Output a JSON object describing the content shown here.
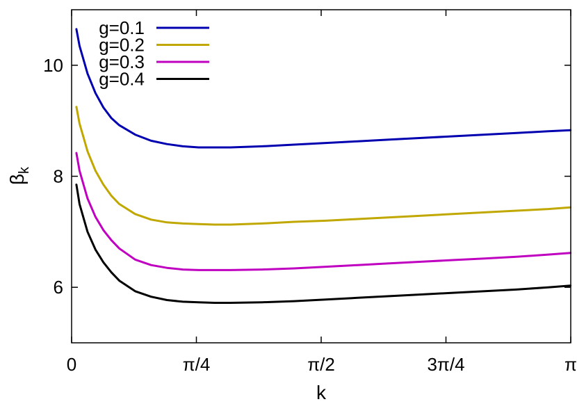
{
  "chart_data": {
    "type": "line",
    "title": "",
    "xlabel": "k",
    "ylabel_main": "β",
    "ylabel_sub": "k",
    "xlim": [
      0,
      3.14159
    ],
    "ylim": [
      5.0,
      11.0
    ],
    "x_ticks": [
      {
        "value": 0,
        "label": "0"
      },
      {
        "value": 0.785398,
        "label": "π/4"
      },
      {
        "value": 1.570796,
        "label": "π/2"
      },
      {
        "value": 2.356194,
        "label": "3π/4"
      },
      {
        "value": 3.141593,
        "label": "π"
      }
    ],
    "y_ticks": [
      {
        "value": 6,
        "label": "6"
      },
      {
        "value": 8,
        "label": "8"
      },
      {
        "value": 10,
        "label": "10"
      }
    ],
    "grid": false,
    "legend_position": "top-left",
    "series": [
      {
        "name": "g=0.1",
        "color": "#0000b0",
        "x": [
          0.03,
          0.05,
          0.08,
          0.1,
          0.15,
          0.2,
          0.25,
          0.3,
          0.4,
          0.5,
          0.6,
          0.7,
          0.8,
          0.9,
          1.0,
          1.2,
          1.4,
          1.6,
          1.8,
          2.0,
          2.2,
          2.4,
          2.6,
          2.8,
          3.0,
          3.14
        ],
        "values": [
          10.65,
          10.35,
          10.05,
          9.85,
          9.5,
          9.24,
          9.05,
          8.92,
          8.75,
          8.64,
          8.58,
          8.54,
          8.52,
          8.52,
          8.52,
          8.54,
          8.57,
          8.6,
          8.63,
          8.66,
          8.69,
          8.72,
          8.75,
          8.78,
          8.81,
          8.83
        ]
      },
      {
        "name": "g=0.2",
        "color": "#c0a800",
        "x": [
          0.03,
          0.05,
          0.08,
          0.1,
          0.15,
          0.2,
          0.25,
          0.3,
          0.4,
          0.5,
          0.6,
          0.7,
          0.8,
          0.9,
          1.0,
          1.2,
          1.4,
          1.6,
          1.8,
          2.0,
          2.2,
          2.4,
          2.6,
          2.8,
          3.0,
          3.14
        ],
        "values": [
          9.25,
          8.95,
          8.65,
          8.45,
          8.1,
          7.85,
          7.65,
          7.5,
          7.32,
          7.22,
          7.17,
          7.15,
          7.14,
          7.13,
          7.13,
          7.15,
          7.18,
          7.2,
          7.23,
          7.26,
          7.29,
          7.32,
          7.35,
          7.38,
          7.41,
          7.44
        ]
      },
      {
        "name": "g=0.3",
        "color": "#c000c0",
        "x": [
          0.03,
          0.05,
          0.08,
          0.1,
          0.15,
          0.2,
          0.25,
          0.3,
          0.4,
          0.5,
          0.6,
          0.7,
          0.8,
          0.9,
          1.0,
          1.2,
          1.4,
          1.6,
          1.8,
          2.0,
          2.2,
          2.4,
          2.6,
          2.8,
          3.0,
          3.14
        ],
        "values": [
          8.42,
          8.1,
          7.8,
          7.6,
          7.27,
          7.03,
          6.85,
          6.7,
          6.5,
          6.4,
          6.35,
          6.32,
          6.31,
          6.31,
          6.31,
          6.32,
          6.34,
          6.37,
          6.4,
          6.43,
          6.46,
          6.49,
          6.52,
          6.55,
          6.59,
          6.62
        ]
      },
      {
        "name": "g=0.4",
        "color": "#000000",
        "x": [
          0.03,
          0.05,
          0.08,
          0.1,
          0.15,
          0.2,
          0.25,
          0.3,
          0.4,
          0.5,
          0.6,
          0.7,
          0.8,
          0.9,
          1.0,
          1.2,
          1.4,
          1.6,
          1.8,
          2.0,
          2.2,
          2.4,
          2.6,
          2.8,
          3.0,
          3.14
        ],
        "values": [
          7.85,
          7.5,
          7.2,
          7.0,
          6.68,
          6.45,
          6.27,
          6.12,
          5.93,
          5.83,
          5.77,
          5.74,
          5.73,
          5.72,
          5.72,
          5.73,
          5.75,
          5.78,
          5.81,
          5.84,
          5.87,
          5.9,
          5.93,
          5.96,
          6.0,
          6.03
        ]
      }
    ]
  }
}
